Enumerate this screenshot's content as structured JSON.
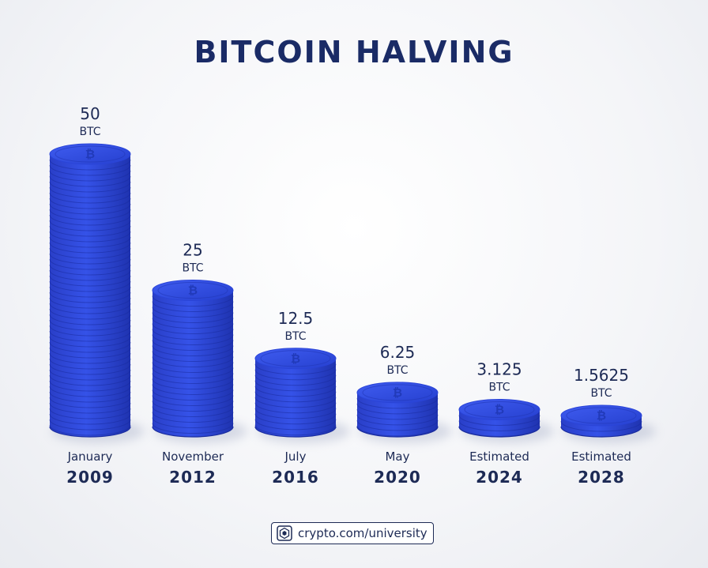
{
  "header": {
    "title": "BITCOIN HALVING"
  },
  "colors": {
    "coin_light": "#3552e8",
    "coin_mid": "#2b45d6",
    "coin_dark": "#1b2fa8",
    "coin_edge": "#2840c9",
    "text_dark": "#1d2a55",
    "title": "#1a2b66"
  },
  "icons": {
    "coin_symbol": "bitcoin-icon",
    "footer_logo": "crypto-com-logo-icon"
  },
  "chart_data": {
    "type": "bar",
    "title": "BITCOIN HALVING",
    "unit": "BTC",
    "categories": [
      {
        "line1": "January",
        "line2": "2009"
      },
      {
        "line1": "November",
        "line2": "2012"
      },
      {
        "line1": "July",
        "line2": "2016"
      },
      {
        "line1": "May",
        "line2": "2020"
      },
      {
        "line1": "Estimated",
        "line2": "2024"
      },
      {
        "line1": "Estimated",
        "line2": "2028"
      }
    ],
    "values": [
      50,
      25,
      12.5,
      6.25,
      3.125,
      1.5625
    ],
    "value_labels": [
      "50",
      "25",
      "12.5",
      "6.25",
      "3.125",
      "1.5625"
    ]
  },
  "footer": {
    "text": "crypto.com/university"
  }
}
